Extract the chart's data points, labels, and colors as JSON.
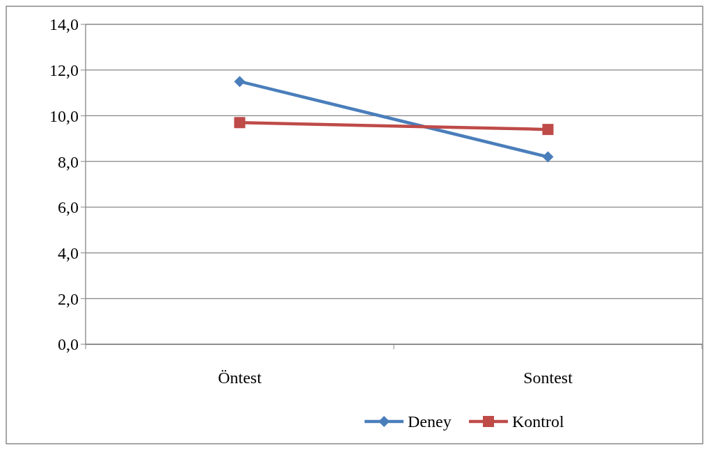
{
  "chart_data": {
    "type": "line",
    "categories": [
      "Öntest",
      "Sontest"
    ],
    "series": [
      {
        "name": "Deney",
        "color": "#4a7ebb",
        "values": [
          11.5,
          8.2
        ],
        "marker": "diamond"
      },
      {
        "name": "Kontrol",
        "color": "#be4b48",
        "values": [
          9.7,
          9.4
        ],
        "marker": "square"
      }
    ],
    "ylim": [
      0,
      14
    ],
    "yticks": [
      {
        "value": 0,
        "label": "0,0"
      },
      {
        "value": 2,
        "label": "2,0"
      },
      {
        "value": 4,
        "label": "4,0"
      },
      {
        "value": 6,
        "label": "6,0"
      },
      {
        "value": 8,
        "label": "8,0"
      },
      {
        "value": 10,
        "label": "10,0"
      },
      {
        "value": 12,
        "label": "12,0"
      },
      {
        "value": 14,
        "label": "14,0"
      }
    ],
    "grid": "y",
    "legend": "bottom"
  }
}
